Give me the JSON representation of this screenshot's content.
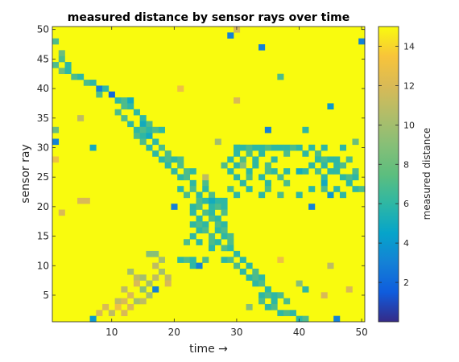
{
  "chart_data": {
    "type": "heatmap",
    "title": "measured distance by sensor rays over time",
    "xlabel": "time →",
    "ylabel": "sensor ray",
    "colorbar_label": "measured distance",
    "x_range": [
      1,
      50
    ],
    "y_range": [
      1,
      50
    ],
    "x_ticks": [
      10,
      20,
      30,
      40,
      50
    ],
    "y_ticks": [
      5,
      10,
      15,
      20,
      25,
      30,
      35,
      40,
      45,
      50
    ],
    "color_range": [
      0,
      15
    ],
    "colorbar_ticks": [
      2,
      4,
      6,
      8,
      10,
      12,
      14
    ],
    "colormap": "parula",
    "grid": false,
    "background_value": 15,
    "cells": [
      [
        1,
        48,
        7
      ],
      [
        2,
        46,
        8
      ],
      [
        2,
        45,
        7
      ],
      [
        3,
        44,
        6
      ],
      [
        1,
        44,
        7
      ],
      [
        2,
        43,
        8
      ],
      [
        3,
        43,
        6
      ],
      [
        4,
        42,
        7
      ],
      [
        5,
        42,
        6
      ],
      [
        6,
        41,
        7
      ],
      [
        7,
        41,
        6
      ],
      [
        8,
        40,
        3
      ],
      [
        9,
        40,
        6
      ],
      [
        8,
        39,
        7
      ],
      [
        10,
        39,
        2
      ],
      [
        11,
        38,
        6
      ],
      [
        12,
        38,
        7
      ],
      [
        13,
        38,
        5
      ],
      [
        12,
        37,
        7
      ],
      [
        13,
        37,
        6
      ],
      [
        11,
        36,
        7
      ],
      [
        14,
        36,
        6
      ],
      [
        12,
        35,
        7
      ],
      [
        15,
        35,
        6
      ],
      [
        13,
        34,
        6
      ],
      [
        15,
        34,
        5
      ],
      [
        16,
        34,
        7
      ],
      [
        14,
        33,
        6
      ],
      [
        15,
        33,
        7
      ],
      [
        16,
        33,
        6
      ],
      [
        17,
        33,
        7
      ],
      [
        18,
        33,
        6
      ],
      [
        14,
        32,
        7
      ],
      [
        15,
        32,
        6
      ],
      [
        16,
        32,
        5
      ],
      [
        15,
        31,
        7
      ],
      [
        17,
        31,
        6
      ],
      [
        16,
        30,
        6
      ],
      [
        18,
        30,
        7
      ],
      [
        17,
        29,
        6
      ],
      [
        19,
        29,
        7
      ],
      [
        18,
        28,
        6
      ],
      [
        19,
        28,
        7
      ],
      [
        20,
        28,
        6
      ],
      [
        21,
        28,
        7
      ],
      [
        19,
        27,
        6
      ],
      [
        21,
        27,
        7
      ],
      [
        20,
        26,
        6
      ],
      [
        22,
        26,
        7
      ],
      [
        23,
        26,
        6
      ],
      [
        21,
        25,
        6
      ],
      [
        22,
        25,
        7
      ],
      [
        23,
        24,
        6
      ],
      [
        25,
        24,
        7
      ],
      [
        21,
        23,
        6
      ],
      [
        23,
        23,
        7
      ],
      [
        25,
        23,
        6
      ],
      [
        22,
        22,
        7
      ],
      [
        24,
        22,
        6
      ],
      [
        26,
        22,
        7
      ],
      [
        27,
        21,
        6
      ],
      [
        24,
        21,
        7
      ],
      [
        25,
        21,
        6
      ],
      [
        26,
        21,
        5
      ],
      [
        28,
        21,
        6
      ],
      [
        20,
        20,
        3
      ],
      [
        23,
        20,
        6
      ],
      [
        24,
        20,
        7
      ],
      [
        26,
        20,
        6
      ],
      [
        27,
        20,
        7
      ],
      [
        28,
        20,
        6
      ],
      [
        23,
        19,
        6
      ],
      [
        25,
        19,
        7
      ],
      [
        26,
        19,
        6
      ],
      [
        28,
        19,
        7
      ],
      [
        24,
        18,
        6
      ],
      [
        26,
        18,
        7
      ],
      [
        27,
        18,
        6
      ],
      [
        23,
        17,
        6
      ],
      [
        24,
        17,
        7
      ],
      [
        25,
        17,
        6
      ],
      [
        27,
        17,
        7
      ],
      [
        28,
        17,
        6
      ],
      [
        24,
        16,
        6
      ],
      [
        25,
        16,
        7
      ],
      [
        27,
        16,
        6
      ],
      [
        28,
        16,
        7
      ],
      [
        23,
        15,
        6
      ],
      [
        26,
        15,
        7
      ],
      [
        28,
        15,
        6
      ],
      [
        29,
        15,
        7
      ],
      [
        22,
        14,
        7
      ],
      [
        24,
        14,
        6
      ],
      [
        26,
        14,
        7
      ],
      [
        27,
        14,
        6
      ],
      [
        29,
        14,
        7
      ],
      [
        26,
        13,
        6
      ],
      [
        28,
        13,
        7
      ],
      [
        29,
        13,
        6
      ],
      [
        30,
        12,
        6
      ],
      [
        21,
        11,
        6
      ],
      [
        22,
        11,
        7
      ],
      [
        23,
        11,
        6
      ],
      [
        25,
        11,
        7
      ],
      [
        28,
        11,
        6
      ],
      [
        29,
        11,
        7
      ],
      [
        31,
        11,
        6
      ],
      [
        23,
        10,
        6
      ],
      [
        24,
        10,
        3
      ],
      [
        30,
        10,
        7
      ],
      [
        32,
        10,
        6
      ],
      [
        31,
        9,
        6
      ],
      [
        33,
        9,
        7
      ],
      [
        32,
        8,
        6
      ],
      [
        33,
        8,
        7
      ],
      [
        34,
        8,
        6
      ],
      [
        33,
        7,
        6
      ],
      [
        34,
        7,
        7
      ],
      [
        35,
        6,
        6
      ],
      [
        34,
        5,
        6
      ],
      [
        35,
        5,
        7
      ],
      [
        36,
        5,
        6
      ],
      [
        37,
        5,
        7
      ],
      [
        34,
        4,
        7
      ],
      [
        36,
        4,
        6
      ],
      [
        38,
        4,
        7
      ],
      [
        35,
        3,
        6
      ],
      [
        36,
        3,
        7
      ],
      [
        37,
        2,
        6
      ],
      [
        38,
        2,
        7
      ],
      [
        39,
        2,
        6
      ],
      [
        40,
        1,
        6
      ],
      [
        41,
        1,
        7
      ],
      [
        30,
        30,
        7
      ],
      [
        31,
        30,
        6
      ],
      [
        32,
        30,
        7
      ],
      [
        33,
        30,
        6
      ],
      [
        34,
        30,
        6
      ],
      [
        35,
        30,
        7
      ],
      [
        36,
        30,
        6
      ],
      [
        37,
        30,
        6
      ],
      [
        38,
        30,
        6
      ],
      [
        39,
        30,
        7
      ],
      [
        40,
        30,
        6
      ],
      [
        42,
        30,
        6
      ],
      [
        44,
        30,
        6
      ],
      [
        47,
        30,
        6
      ],
      [
        30,
        29,
        6
      ],
      [
        32,
        29,
        7
      ],
      [
        34,
        29,
        6
      ],
      [
        38,
        29,
        7
      ],
      [
        41,
        29,
        6
      ],
      [
        43,
        29,
        7
      ],
      [
        29,
        28,
        6
      ],
      [
        31,
        28,
        7
      ],
      [
        33,
        28,
        6
      ],
      [
        36,
        28,
        6
      ],
      [
        43,
        28,
        6
      ],
      [
        44,
        28,
        7
      ],
      [
        45,
        28,
        6
      ],
      [
        46,
        28,
        6
      ],
      [
        48,
        28,
        7
      ],
      [
        28,
        27,
        7
      ],
      [
        30,
        27,
        6
      ],
      [
        31,
        27,
        9
      ],
      [
        33,
        27,
        6
      ],
      [
        35,
        27,
        7
      ],
      [
        42,
        27,
        6
      ],
      [
        44,
        27,
        6
      ],
      [
        46,
        27,
        6
      ],
      [
        47,
        27,
        7
      ],
      [
        29,
        26,
        6
      ],
      [
        32,
        26,
        6
      ],
      [
        35,
        26,
        7
      ],
      [
        36,
        26,
        6
      ],
      [
        38,
        26,
        6
      ],
      [
        40,
        26,
        5
      ],
      [
        41,
        26,
        6
      ],
      [
        43,
        26,
        7
      ],
      [
        45,
        26,
        6
      ],
      [
        46,
        26,
        6
      ],
      [
        49,
        26,
        7
      ],
      [
        30,
        25,
        6
      ],
      [
        32,
        25,
        7
      ],
      [
        34,
        25,
        6
      ],
      [
        37,
        25,
        7
      ],
      [
        44,
        25,
        6
      ],
      [
        47,
        25,
        6
      ],
      [
        48,
        25,
        7
      ],
      [
        49,
        25,
        6
      ],
      [
        31,
        24,
        6
      ],
      [
        35,
        24,
        6
      ],
      [
        38,
        24,
        7
      ],
      [
        44,
        24,
        5
      ],
      [
        48,
        24,
        6
      ],
      [
        29,
        23,
        7
      ],
      [
        32,
        23,
        6
      ],
      [
        35,
        23,
        7
      ],
      [
        42,
        23,
        6
      ],
      [
        44,
        23,
        7
      ],
      [
        46,
        23,
        6
      ],
      [
        49,
        23,
        6
      ],
      [
        50,
        23,
        7
      ],
      [
        30,
        22,
        6
      ],
      [
        34,
        22,
        6
      ],
      [
        37,
        22,
        7
      ],
      [
        40,
        22,
        6
      ],
      [
        45,
        22,
        4
      ],
      [
        47,
        22,
        6
      ],
      [
        30,
        30,
        6
      ],
      [
        13,
        9,
        10
      ],
      [
        14,
        8,
        11
      ],
      [
        15,
        8,
        10
      ],
      [
        14,
        7,
        12
      ],
      [
        12,
        6,
        11
      ],
      [
        15,
        6,
        9
      ],
      [
        17,
        6,
        3
      ],
      [
        13,
        5,
        12
      ],
      [
        16,
        5,
        10
      ],
      [
        11,
        4,
        11
      ],
      [
        12,
        4,
        12
      ],
      [
        14,
        4,
        10
      ],
      [
        15,
        4,
        11
      ],
      [
        9,
        3,
        12
      ],
      [
        11,
        3,
        13
      ],
      [
        13,
        3,
        12
      ],
      [
        8,
        2,
        12
      ],
      [
        10,
        2,
        11
      ],
      [
        12,
        2,
        12
      ],
      [
        16,
        7,
        10
      ],
      [
        17,
        8,
        11
      ],
      [
        18,
        9,
        10
      ],
      [
        17,
        10,
        11
      ],
      [
        18,
        11,
        10
      ],
      [
        19,
        8,
        11
      ],
      [
        19,
        7,
        12
      ],
      [
        16,
        12,
        9
      ],
      [
        17,
        12,
        9
      ],
      [
        29,
        49,
        3
      ],
      [
        30,
        50,
        12
      ],
      [
        34,
        47,
        3
      ],
      [
        37,
        42,
        7
      ],
      [
        45,
        37,
        4
      ],
      [
        35,
        33,
        3
      ],
      [
        41,
        33,
        6
      ],
      [
        27,
        31,
        10
      ],
      [
        49,
        31,
        8
      ],
      [
        21,
        40,
        13
      ],
      [
        30,
        38,
        12
      ],
      [
        5,
        35,
        11
      ],
      [
        1,
        33,
        8
      ],
      [
        1,
        31,
        3
      ],
      [
        7,
        30,
        5
      ],
      [
        25,
        25,
        11
      ],
      [
        5,
        21,
        12
      ],
      [
        6,
        21,
        12
      ],
      [
        2,
        19,
        12
      ],
      [
        42,
        20,
        3
      ],
      [
        45,
        10,
        11
      ],
      [
        40,
        7,
        9
      ],
      [
        41,
        6,
        6
      ],
      [
        44,
        5,
        12
      ],
      [
        48,
        6,
        12
      ],
      [
        37,
        11,
        13
      ],
      [
        32,
        3,
        9
      ],
      [
        46,
        1,
        3
      ],
      [
        7,
        1,
        4
      ],
      [
        1,
        28,
        13
      ],
      [
        50,
        48,
        3
      ]
    ]
  }
}
